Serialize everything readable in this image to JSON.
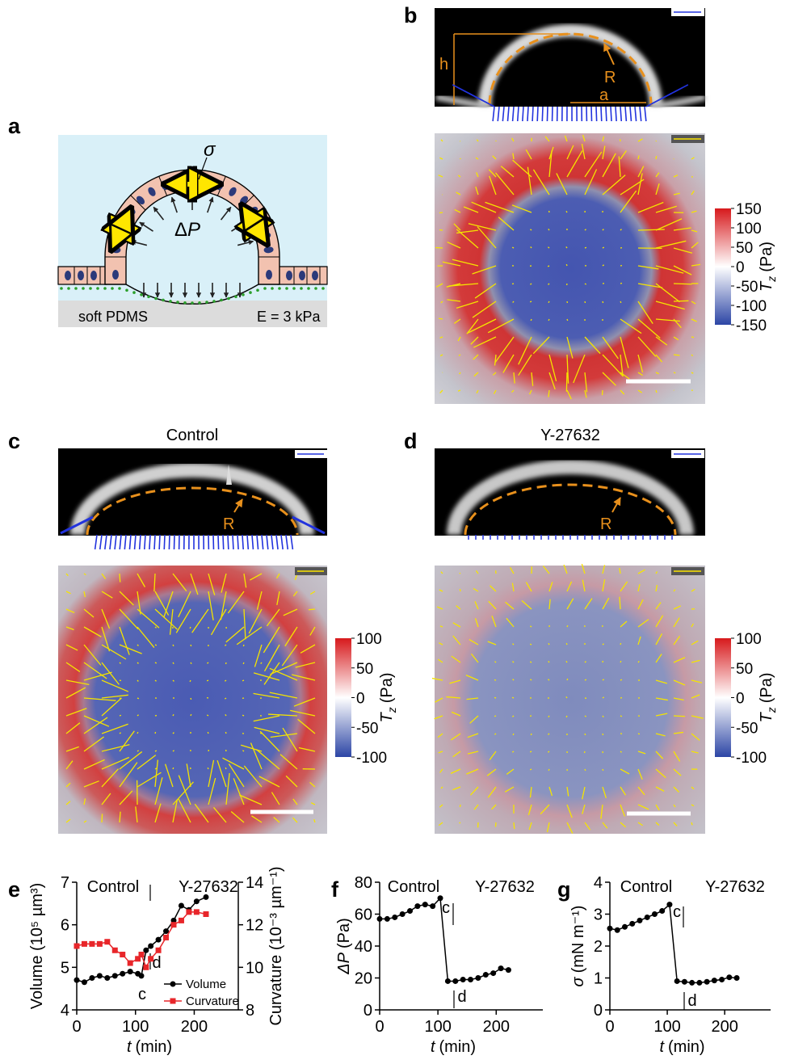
{
  "figure": {
    "panel_labels": [
      "a",
      "b",
      "c",
      "d",
      "e",
      "f",
      "g"
    ],
    "schematic": {
      "tension": "σ",
      "pressure_delta": "Δ",
      "pressure_symbol": "P",
      "substrate": "soft PDMS",
      "modulus": "E = 3 kPa"
    },
    "side_view_b": {
      "height": "h",
      "radius": "R",
      "base": "a"
    },
    "side_view_c": {
      "title": "Control",
      "radius": "R"
    },
    "side_view_d": {
      "title": "Y-27632",
      "radius": "R"
    },
    "colorbars": [
      {
        "symbol": "T",
        "subscript": "z",
        "unit": "(Pa)",
        "ticks": [
          150,
          100,
          50,
          0,
          -50,
          -100,
          -150
        ]
      },
      {
        "symbol": "T",
        "subscript": "z",
        "unit": "(Pa)",
        "ticks": [
          100,
          50,
          0,
          -50,
          -100
        ]
      },
      {
        "symbol": "T",
        "subscript": "z",
        "unit": "(Pa)",
        "ticks": [
          100,
          50,
          0,
          -50,
          -100
        ]
      }
    ]
  },
  "chart_data": [
    {
      "type": "line",
      "x_label": {
        "symbol": "t",
        "unit": "(min)"
      },
      "y_label": "Volume (10⁵ µm³)",
      "y2_label": "Curvature (10⁻³ µm⁻¹)",
      "annotations": [
        "Control",
        "Y-27632",
        "c",
        "d"
      ],
      "x": [
        0,
        13,
        26,
        39,
        52,
        65,
        78,
        91,
        104,
        110,
        118,
        126,
        139,
        152,
        165,
        178,
        191,
        204,
        220
      ],
      "xlim": [
        0,
        275
      ],
      "xticks": [
        0,
        100,
        200
      ],
      "ylim": [
        4,
        7
      ],
      "yticks": [
        4,
        5,
        6,
        7
      ],
      "y2lim": [
        8,
        14
      ],
      "y2ticks": [
        8,
        10,
        12,
        14
      ],
      "series": [
        {
          "name": "Volume",
          "color": "#000000",
          "marker": "circle",
          "values": [
            4.7,
            4.65,
            4.75,
            4.8,
            4.75,
            4.8,
            4.85,
            4.9,
            4.85,
            4.8,
            5.4,
            5.5,
            5.65,
            5.85,
            6.1,
            6.45,
            6.35,
            6.55,
            6.65
          ]
        },
        {
          "name": "Curvature",
          "color": "#e8262a",
          "marker": "square",
          "axis": "y2",
          "values": [
            11,
            11.1,
            11.1,
            11.1,
            11.2,
            10.8,
            10.6,
            10.2,
            10.4,
            10.6,
            10,
            10.4,
            10.8,
            11.4,
            12,
            12.2,
            12.6,
            12.6,
            12.5
          ]
        }
      ],
      "legend": "lower right"
    },
    {
      "type": "line",
      "x_label": {
        "symbol": "t",
        "unit": "(min)"
      },
      "y_label": {
        "symbol": "ΔP",
        "unit": "(Pa)"
      },
      "annotations": [
        "Control",
        "Y-27632",
        "c",
        "d"
      ],
      "x": [
        0,
        13,
        26,
        39,
        52,
        65,
        78,
        91,
        104,
        117,
        130,
        143,
        156,
        169,
        182,
        195,
        208,
        221
      ],
      "xlim": [
        0,
        280
      ],
      "xticks": [
        0,
        100,
        200
      ],
      "ylim": [
        0,
        80
      ],
      "yticks": [
        0,
        20,
        40,
        60,
        80
      ],
      "color": "#000000",
      "values": [
        57,
        57,
        58,
        60,
        62,
        65,
        66,
        65,
        70,
        18,
        18,
        19,
        19,
        20,
        22,
        23,
        26,
        25
      ]
    },
    {
      "type": "line",
      "x_label": {
        "symbol": "t",
        "unit": "(min)"
      },
      "y_label": {
        "symbol": "σ",
        "unit": "(mN m⁻¹)"
      },
      "annotations": [
        "Control",
        "Y-27632",
        "c",
        "d"
      ],
      "x": [
        0,
        13,
        26,
        39,
        52,
        65,
        78,
        91,
        104,
        117,
        130,
        143,
        156,
        169,
        182,
        195,
        208,
        221
      ],
      "xlim": [
        0,
        280
      ],
      "xticks": [
        0,
        100,
        200
      ],
      "ylim": [
        0,
        4
      ],
      "yticks": [
        0,
        1,
        2,
        3,
        4
      ],
      "color": "#000000",
      "values": [
        2.55,
        2.5,
        2.6,
        2.7,
        2.8,
        2.9,
        3.0,
        3.1,
        3.3,
        0.9,
        0.88,
        0.85,
        0.85,
        0.88,
        0.92,
        0.95,
        1.02,
        1.0
      ]
    }
  ]
}
